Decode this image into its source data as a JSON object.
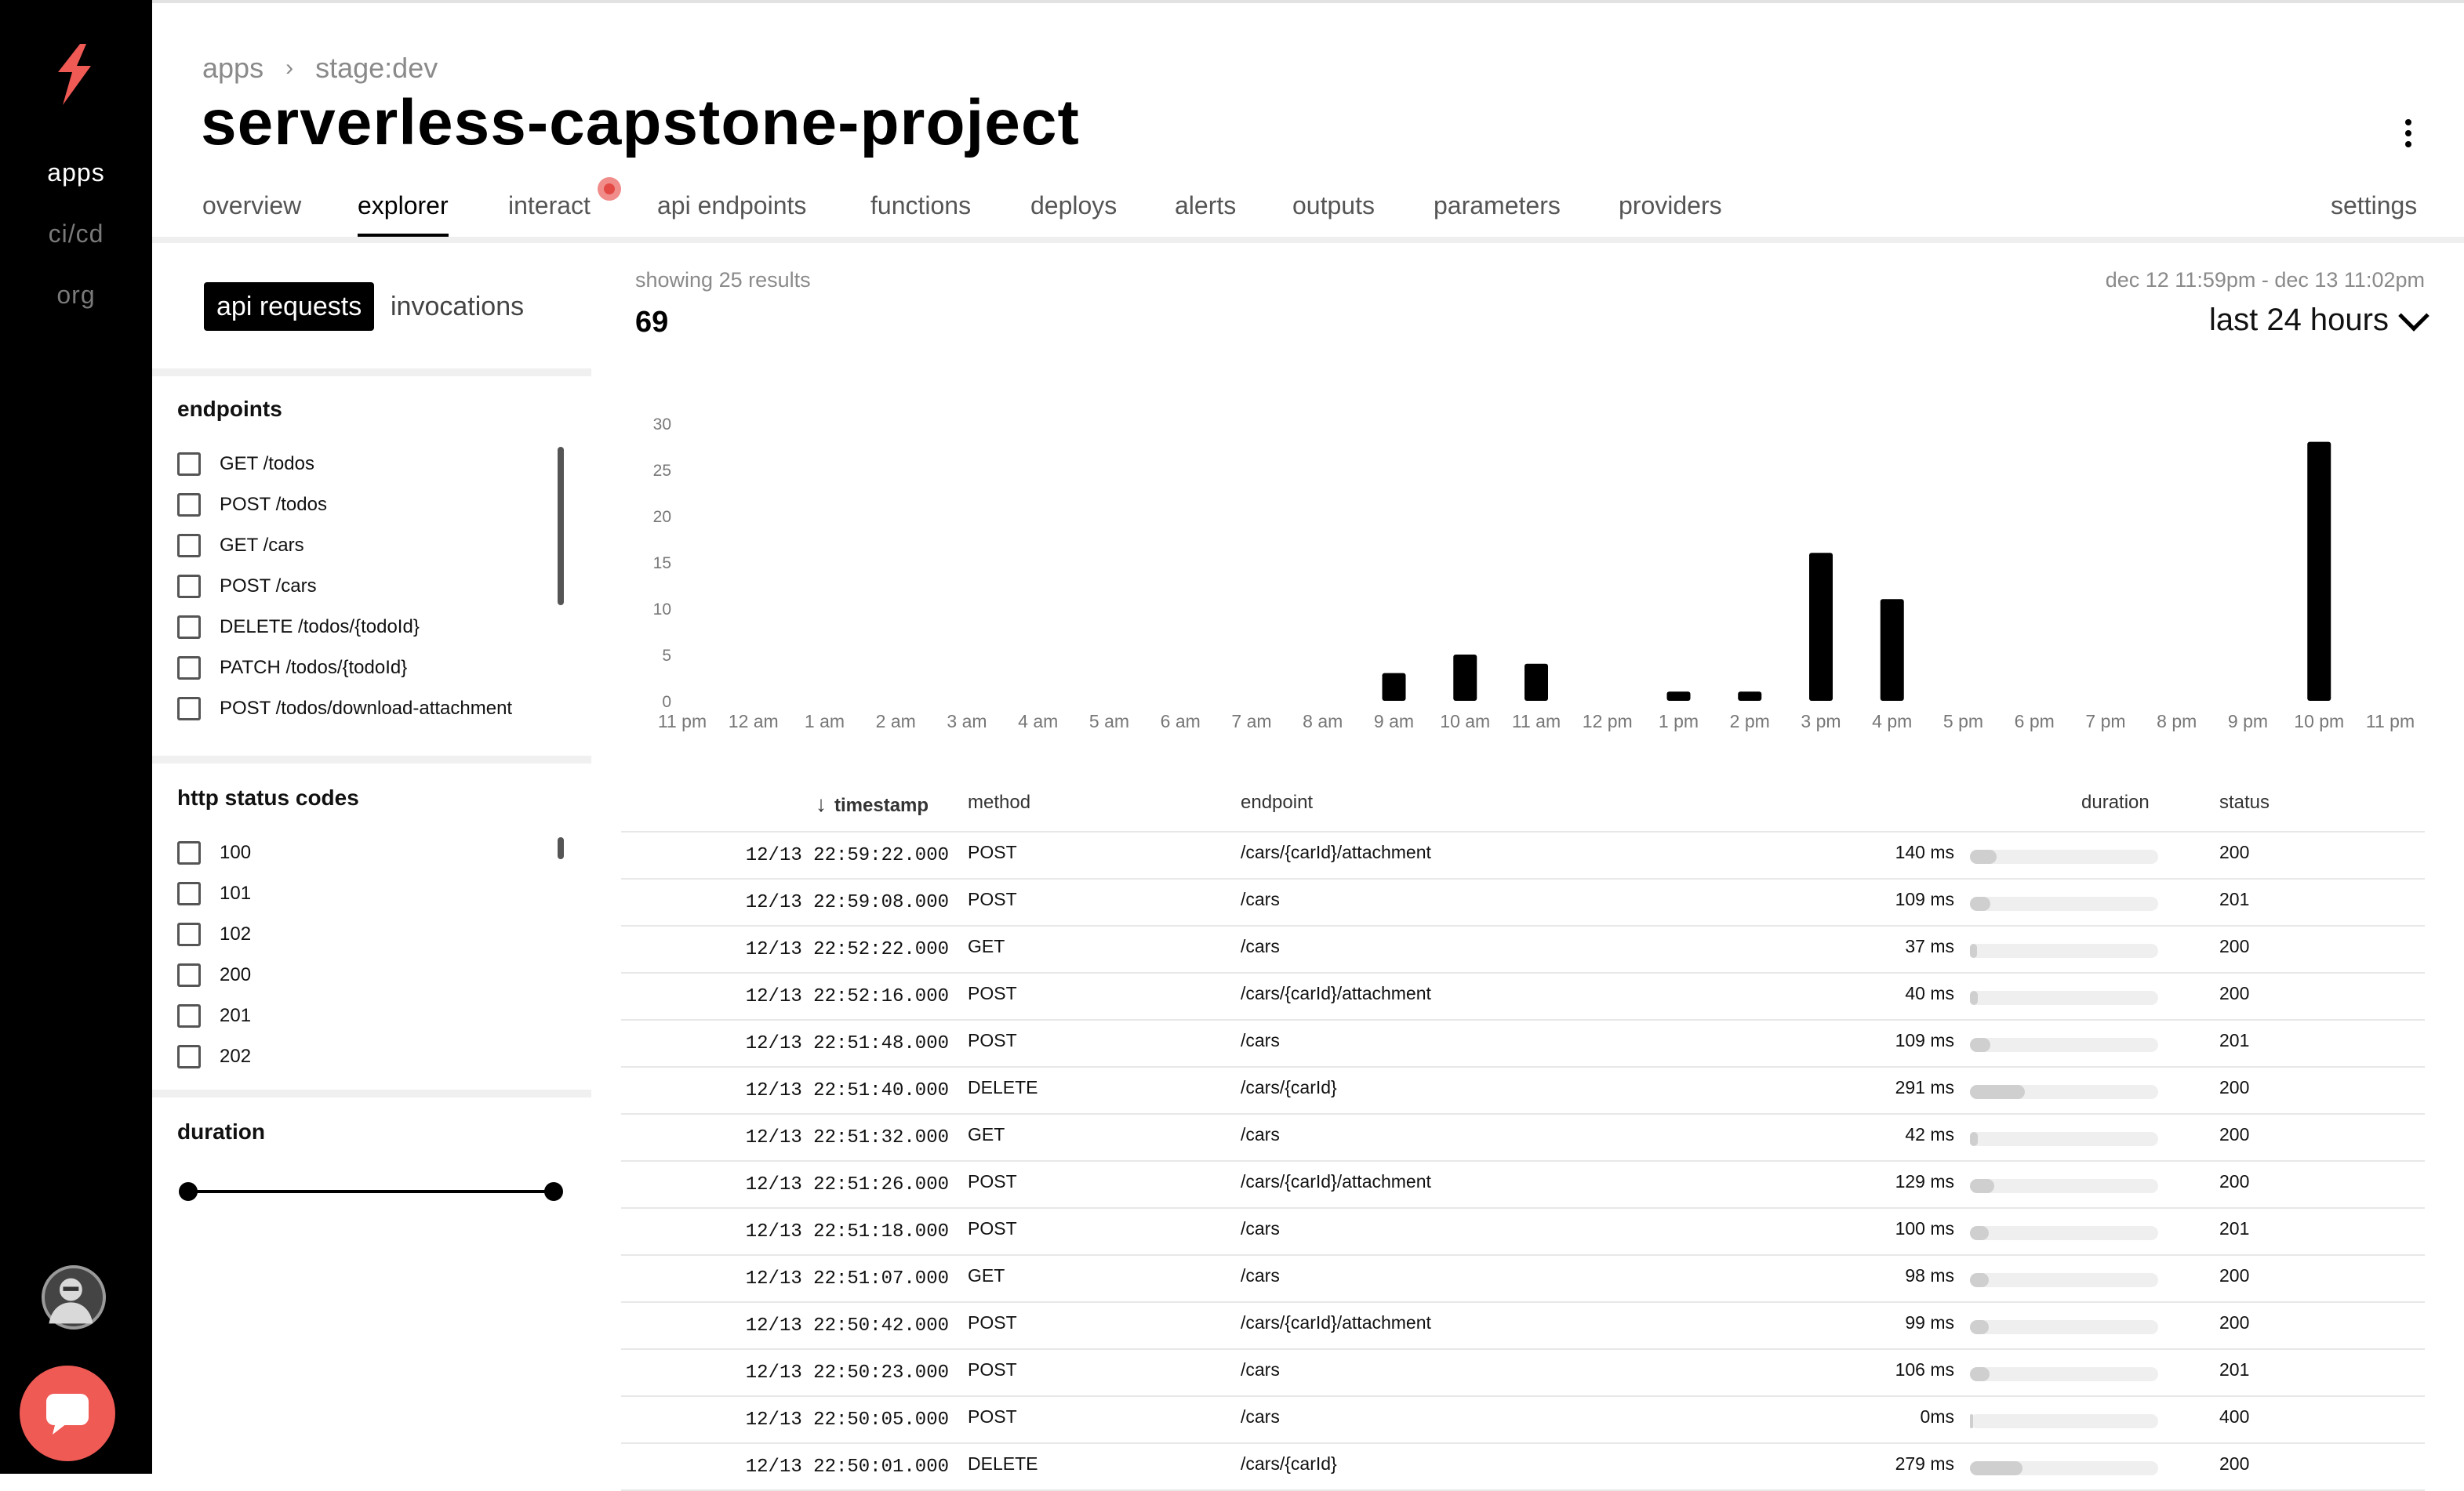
{
  "sidebar": {
    "nav": [
      {
        "label": "apps",
        "active": true
      },
      {
        "label": "ci/cd",
        "active": false
      },
      {
        "label": "org",
        "active": false
      }
    ]
  },
  "header": {
    "breadcrumb": [
      "apps",
      "stage:dev"
    ],
    "title": "serverless-capstone-project"
  },
  "tabs": [
    {
      "label": "overview",
      "active": false
    },
    {
      "label": "explorer",
      "active": true
    },
    {
      "label": "interact",
      "active": false,
      "badge": true
    },
    {
      "label": "api endpoints",
      "active": false
    },
    {
      "label": "functions",
      "active": false
    },
    {
      "label": "deploys",
      "active": false
    },
    {
      "label": "alerts",
      "active": false
    },
    {
      "label": "outputs",
      "active": false
    },
    {
      "label": "parameters",
      "active": false
    },
    {
      "label": "providers",
      "active": false
    }
  ],
  "settings_label": "settings",
  "filters": {
    "view_toggle": [
      {
        "label": "api requests",
        "active": true
      },
      {
        "label": "invocations",
        "active": false
      }
    ],
    "endpoints_title": "endpoints",
    "endpoints": [
      "GET /todos",
      "POST /todos",
      "GET /cars",
      "POST /cars",
      "DELETE /todos/{todoId}",
      "PATCH /todos/{todoId}",
      "POST /todos/download-attachment"
    ],
    "status_title": "http status codes",
    "status_codes": [
      "100",
      "101",
      "102",
      "200",
      "201",
      "202"
    ],
    "duration_title": "duration",
    "duration_range": [
      0,
      1
    ]
  },
  "summary": {
    "results_label": "showing 25 results",
    "total": "69",
    "range_label": "dec 12 11:59pm - dec 13 11:02pm",
    "range_select": "last 24 hours"
  },
  "chart_data": {
    "type": "bar",
    "categories": [
      "11 pm",
      "12 am",
      "1 am",
      "2 am",
      "3 am",
      "4 am",
      "5 am",
      "6 am",
      "7 am",
      "8 am",
      "9 am",
      "10 am",
      "11 am",
      "12 pm",
      "1 pm",
      "2 pm",
      "3 pm",
      "4 pm",
      "5 pm",
      "6 pm",
      "7 pm",
      "8 pm",
      "9 pm",
      "10 pm",
      "11 pm"
    ],
    "values": [
      0,
      0,
      0,
      0,
      0,
      0,
      0,
      0,
      0,
      0,
      3,
      5,
      4,
      0,
      1,
      1,
      16,
      11,
      0,
      0,
      0,
      0,
      0,
      28,
      0
    ],
    "ylim": [
      0,
      30
    ],
    "yticks": [
      0,
      5,
      10,
      15,
      20,
      25,
      30
    ],
    "bar_color": "#000000",
    "grid": false
  },
  "table": {
    "columns": [
      "timestamp",
      "method",
      "endpoint",
      "duration",
      "status"
    ],
    "max_duration_ms": 1000,
    "rows": [
      {
        "timestamp": "12/13 22:59:22.000",
        "method": "POST",
        "endpoint": "/cars/{carId}/attachment",
        "duration": "140 ms",
        "duration_ms": 140,
        "status": "200"
      },
      {
        "timestamp": "12/13 22:59:08.000",
        "method": "POST",
        "endpoint": "/cars",
        "duration": "109 ms",
        "duration_ms": 109,
        "status": "201"
      },
      {
        "timestamp": "12/13 22:52:22.000",
        "method": "GET",
        "endpoint": "/cars",
        "duration": "37 ms",
        "duration_ms": 37,
        "status": "200"
      },
      {
        "timestamp": "12/13 22:52:16.000",
        "method": "POST",
        "endpoint": "/cars/{carId}/attachment",
        "duration": "40 ms",
        "duration_ms": 40,
        "status": "200"
      },
      {
        "timestamp": "12/13 22:51:48.000",
        "method": "POST",
        "endpoint": "/cars",
        "duration": "109 ms",
        "duration_ms": 109,
        "status": "201"
      },
      {
        "timestamp": "12/13 22:51:40.000",
        "method": "DELETE",
        "endpoint": "/cars/{carId}",
        "duration": "291 ms",
        "duration_ms": 291,
        "status": "200"
      },
      {
        "timestamp": "12/13 22:51:32.000",
        "method": "GET",
        "endpoint": "/cars",
        "duration": "42 ms",
        "duration_ms": 42,
        "status": "200"
      },
      {
        "timestamp": "12/13 22:51:26.000",
        "method": "POST",
        "endpoint": "/cars/{carId}/attachment",
        "duration": "129 ms",
        "duration_ms": 129,
        "status": "200"
      },
      {
        "timestamp": "12/13 22:51:18.000",
        "method": "POST",
        "endpoint": "/cars",
        "duration": "100 ms",
        "duration_ms": 100,
        "status": "201"
      },
      {
        "timestamp": "12/13 22:51:07.000",
        "method": "GET",
        "endpoint": "/cars",
        "duration": "98 ms",
        "duration_ms": 98,
        "status": "200"
      },
      {
        "timestamp": "12/13 22:50:42.000",
        "method": "POST",
        "endpoint": "/cars/{carId}/attachment",
        "duration": "99 ms",
        "duration_ms": 99,
        "status": "200"
      },
      {
        "timestamp": "12/13 22:50:23.000",
        "method": "POST",
        "endpoint": "/cars",
        "duration": "106 ms",
        "duration_ms": 106,
        "status": "201"
      },
      {
        "timestamp": "12/13 22:50:05.000",
        "method": "POST",
        "endpoint": "/cars",
        "duration": "0ms",
        "duration_ms": 0,
        "status": "400"
      },
      {
        "timestamp": "12/13 22:50:01.000",
        "method": "DELETE",
        "endpoint": "/cars/{carId}",
        "duration": "279 ms",
        "duration_ms": 279,
        "status": "200"
      }
    ]
  }
}
